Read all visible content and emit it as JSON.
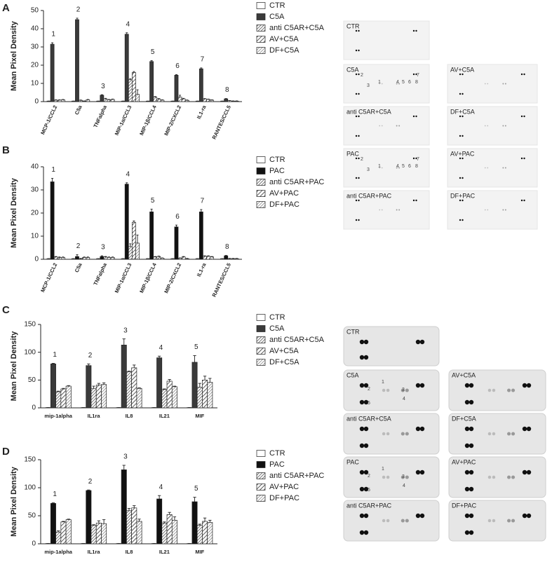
{
  "chart_data": [
    {
      "type": "bar",
      "label": "A",
      "ylabel": "Mean Pixel Density",
      "categories": [
        "MCP-1/CCL2",
        "C5a",
        "TNFalpha",
        "MIP-1α/CCL3",
        "MIP-1β/CCL4",
        "MIP-2/CXCL2",
        "IL1-ra",
        "RANTES/CCL5"
      ],
      "annotations": [
        "1",
        "2",
        "3",
        "4",
        "5",
        "6",
        "7",
        "8"
      ],
      "ylim": [
        0,
        50
      ],
      "yticks": [
        0,
        10,
        20,
        30,
        40,
        50
      ],
      "series": [
        {
          "name": "CTR",
          "color": "#ffffff",
          "hatch": false,
          "values": [
            0.3,
            0.3,
            0.3,
            0.3,
            0.3,
            0.3,
            0.3,
            0.3
          ],
          "errors": [
            0,
            0,
            0,
            0,
            0,
            0,
            0,
            0
          ]
        },
        {
          "name": "C5A",
          "color": "#3a3a3a",
          "hatch": false,
          "values": [
            31.5,
            45,
            3.5,
            37,
            22,
            14.5,
            18,
            1.5
          ],
          "errors": [
            0.8,
            0.8,
            0.3,
            0.8,
            0.5,
            0.3,
            0.5,
            0.2
          ]
        },
        {
          "name": "anti C5AR+C5A",
          "color": "#555555",
          "hatch": true,
          "values": [
            0.8,
            0.7,
            1.5,
            12,
            2.5,
            2.5,
            1.5,
            0.5
          ],
          "errors": [
            0.2,
            0.2,
            0.3,
            0.5,
            0.3,
            1,
            0.2,
            0.1
          ]
        },
        {
          "name": "AV+C5A",
          "color": "#333333",
          "hatch": true,
          "values": [
            0.8,
            0.3,
            1,
            16,
            1.5,
            1.5,
            1.2,
            0.3
          ],
          "errors": [
            0.2,
            0.1,
            0.2,
            0.5,
            0.2,
            0.3,
            0.2,
            0.1
          ]
        },
        {
          "name": "DF+C5A",
          "color": "#888888",
          "hatch": true,
          "values": [
            1,
            1,
            1.2,
            4,
            0.8,
            0.7,
            0.8,
            0.3
          ],
          "errors": [
            0.2,
            0.2,
            0.2,
            2.5,
            0.2,
            0.2,
            0.2,
            0.1
          ]
        }
      ]
    },
    {
      "type": "bar",
      "label": "B",
      "ylabel": "Mean Pixel Density",
      "categories": [
        "MCP-1/CCL2",
        "C5a",
        "TNFalpha",
        "MIP-1α/CCL3",
        "MIP-1β/CCL4",
        "MIP-2/CXCL2",
        "IL1-ra",
        "RANTES/CCL5"
      ],
      "annotations": [
        "1",
        "2",
        "3",
        "4",
        "5",
        "6",
        "7",
        "8"
      ],
      "ylim": [
        0,
        40
      ],
      "yticks": [
        0,
        10,
        20,
        30,
        40
      ],
      "series": [
        {
          "name": "CTR",
          "color": "#ffffff",
          "hatch": false,
          "values": [
            0.3,
            0.3,
            0.3,
            0.3,
            0.3,
            0.3,
            0.3,
            0.3
          ],
          "errors": [
            0,
            0,
            0,
            0,
            0,
            0,
            0,
            0
          ]
        },
        {
          "name": "PAC",
          "color": "#111111",
          "hatch": false,
          "values": [
            33.5,
            1.2,
            1.2,
            32.5,
            20.5,
            14,
            20.5,
            1.5
          ],
          "errors": [
            1.5,
            0.8,
            0.3,
            0.6,
            1.2,
            0.8,
            1,
            0.2
          ]
        },
        {
          "name": "anti C5AR+PAC",
          "color": "#555555",
          "hatch": true,
          "values": [
            1,
            0.3,
            1,
            5.5,
            1,
            0.5,
            1.3,
            0.3
          ],
          "errors": [
            0.2,
            0.1,
            0.2,
            1.2,
            0.2,
            0.1,
            0.2,
            0.1
          ]
        },
        {
          "name": "AV+PAC",
          "color": "#333333",
          "hatch": true,
          "values": [
            0.8,
            0.8,
            0.8,
            16,
            1.2,
            1,
            1.3,
            0.3
          ],
          "errors": [
            0.2,
            0.2,
            0.2,
            0.6,
            0.2,
            0.2,
            0.2,
            0.1
          ]
        },
        {
          "name": "DF+PAC",
          "color": "#888888",
          "hatch": true,
          "values": [
            0.8,
            0.8,
            0.8,
            7,
            0.5,
            0.3,
            1,
            0.3
          ],
          "errors": [
            0.2,
            0.2,
            0.2,
            3.5,
            0.1,
            0.1,
            0.2,
            0.1
          ]
        }
      ]
    },
    {
      "type": "bar",
      "label": "C",
      "ylabel": "Mean Pixel Density",
      "categories": [
        "mip-1alpha",
        "IL1ra",
        "IL8",
        "IL21",
        "MIF"
      ],
      "annotations": [
        "1",
        "2",
        "3",
        "4",
        "5"
      ],
      "ylim": [
        0,
        150
      ],
      "yticks": [
        0,
        50,
        100,
        150
      ],
      "series": [
        {
          "name": "CTR",
          "color": "#ffffff",
          "hatch": false,
          "values": [
            0.5,
            0.5,
            0.5,
            0.5,
            0.5
          ],
          "errors": [
            0,
            0,
            0,
            0,
            0
          ]
        },
        {
          "name": "C5A",
          "color": "#3a3a3a",
          "hatch": false,
          "values": [
            79,
            76,
            113,
            90,
            82
          ],
          "errors": [
            1,
            3,
            11,
            3,
            12
          ]
        },
        {
          "name": "anti C5AR+C5A",
          "color": "#555555",
          "hatch": true,
          "values": [
            29,
            35,
            65,
            33,
            37
          ],
          "errors": [
            1,
            4,
            1,
            1,
            7
          ]
        },
        {
          "name": "AV+C5A",
          "color": "#333333",
          "hatch": true,
          "values": [
            34,
            41,
            72,
            48,
            50
          ],
          "errors": [
            1,
            3,
            5,
            3,
            7
          ]
        },
        {
          "name": "DF+C5A",
          "color": "#888888",
          "hatch": true,
          "values": [
            39,
            42,
            35,
            38,
            46
          ],
          "errors": [
            1,
            3,
            1,
            1,
            7
          ]
        }
      ]
    },
    {
      "type": "bar",
      "label": "D",
      "ylabel": "Mean Pixel Density",
      "categories": [
        "mip-1alpha",
        "IL1ra",
        "IL8",
        "IL21",
        "MIF"
      ],
      "annotations": [
        "1",
        "2",
        "3",
        "4",
        "5"
      ],
      "ylim": [
        0,
        150
      ],
      "yticks": [
        0,
        50,
        100,
        150
      ],
      "series": [
        {
          "name": "CTR",
          "color": "#ffffff",
          "hatch": false,
          "values": [
            0.5,
            0.5,
            0.5,
            0.5,
            0.5
          ],
          "errors": [
            0,
            0,
            0,
            0,
            0
          ]
        },
        {
          "name": "PAC",
          "color": "#111111",
          "hatch": false,
          "values": [
            72,
            95,
            132,
            80,
            75
          ],
          "errors": [
            1,
            1,
            8,
            6,
            8
          ]
        },
        {
          "name": "anti C5AR+PAC",
          "color": "#555555",
          "hatch": true,
          "values": [
            21,
            33,
            59,
            37,
            33
          ],
          "errors": [
            2,
            1,
            4,
            2,
            2
          ]
        },
        {
          "name": "AV+PAC",
          "color": "#333333",
          "hatch": true,
          "values": [
            39,
            37,
            64,
            52,
            40
          ],
          "errors": [
            1,
            4,
            4,
            4,
            6
          ]
        },
        {
          "name": "DF+PAC",
          "color": "#888888",
          "hatch": true,
          "values": [
            43,
            36,
            40,
            42,
            38
          ],
          "errors": [
            1,
            7,
            4,
            6,
            4
          ]
        }
      ]
    }
  ],
  "blots": {
    "top": [
      {
        "label": "CTR"
      },
      {
        "label": "C5A",
        "spots": [
          "1",
          "2",
          "3",
          "4",
          "5",
          "6",
          "7",
          "8"
        ]
      },
      {
        "label": "AV+C5A"
      },
      {
        "label": "anti C5AR+C5A"
      },
      {
        "label": "DF+C5A"
      },
      {
        "label": "PAC",
        "spots": [
          "1",
          "2",
          "3",
          "4",
          "5",
          "6",
          "7",
          "8"
        ]
      },
      {
        "label": "AV+PAC"
      },
      {
        "label": "anti C5AR+PAC"
      },
      {
        "label": "DF+PAC"
      }
    ],
    "bottom": [
      {
        "label": "CTR"
      },
      {
        "label": "C5A",
        "spots": [
          "1",
          "2",
          "3",
          "4",
          "5"
        ]
      },
      {
        "label": "AV+C5A"
      },
      {
        "label": "anti C5AR+C5A"
      },
      {
        "label": "DF+C5A"
      },
      {
        "label": "PAC",
        "spots": [
          "1",
          "2",
          "3",
          "4",
          "5"
        ]
      },
      {
        "label": "AV+PAC"
      },
      {
        "label": "anti C5AR+PAC"
      },
      {
        "label": "DF+PAC"
      }
    ]
  }
}
